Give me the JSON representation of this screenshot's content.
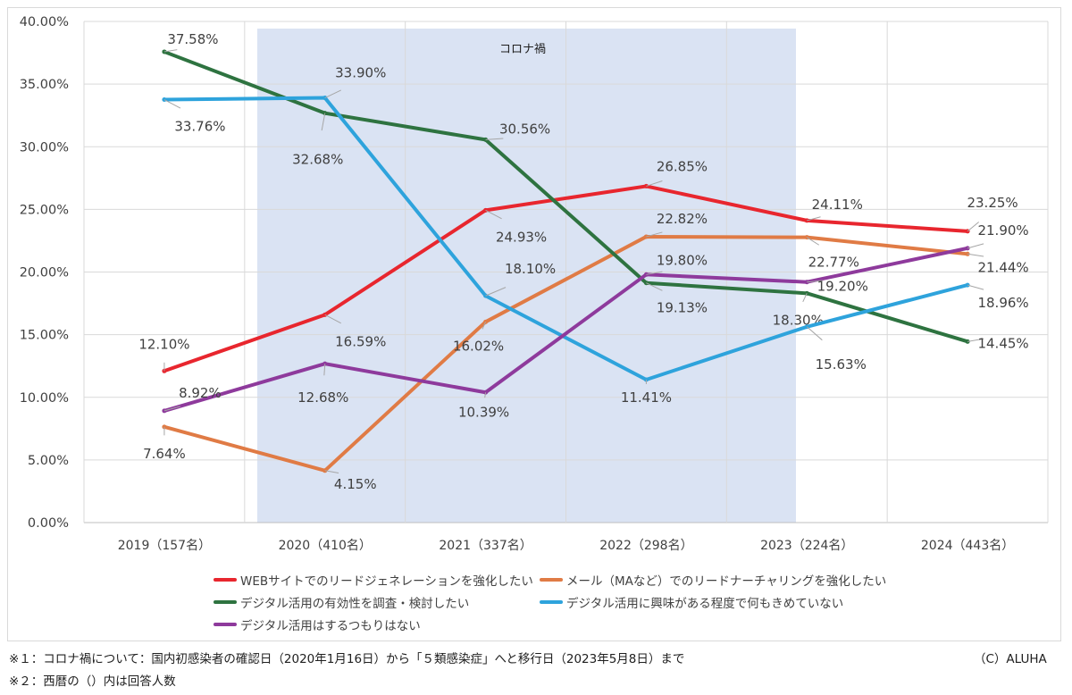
{
  "chart_data": {
    "type": "line",
    "categories": [
      "2019（157名）",
      "2020（410名）",
      "2021（337名）",
      "2022（298名）",
      "2023（224名）",
      "2024（443名）"
    ],
    "ylim": [
      0,
      40
    ],
    "yticks": [
      "0.00%",
      "5.00%",
      "10.00%",
      "15.00%",
      "20.00%",
      "25.00%",
      "30.00%",
      "35.00%",
      "40.00%"
    ],
    "grid": true,
    "legend_position": "bottom",
    "shaded_region": {
      "label": "コロナ禍",
      "color": "#dae3f3"
    },
    "series": [
      {
        "name": "WEBサイトでのリードジェネレーションを強化したい",
        "color": "#e8262e",
        "values": [
          12.1,
          16.59,
          24.93,
          26.85,
          24.11,
          23.25
        ],
        "labels": [
          "12.10%",
          "16.59%",
          "24.93%",
          "26.85%",
          "24.11%",
          "23.25%"
        ]
      },
      {
        "name": "メール（MAなど）でのリードナーチャリングを強化したい",
        "color": "#e07b45",
        "values": [
          7.64,
          4.15,
          16.02,
          22.82,
          22.77,
          21.44
        ],
        "labels": [
          "7.64%",
          "4.15%",
          "16.02%",
          "22.82%",
          "22.77%",
          "21.44%"
        ]
      },
      {
        "name": "デジタル活用の有効性を調査・検討したい",
        "color": "#2e7340",
        "values": [
          37.58,
          32.68,
          30.56,
          19.13,
          18.3,
          14.45
        ],
        "labels": [
          "37.58%",
          "32.68%",
          "30.56%",
          "19.13%",
          "18.30%",
          "14.45%"
        ]
      },
      {
        "name": "デジタル活用に興味がある程度で何もきめていない",
        "color": "#2ea3dc",
        "values": [
          33.76,
          33.9,
          18.1,
          11.41,
          15.63,
          18.96
        ],
        "labels": [
          "33.76%",
          "33.90%",
          "18.10%",
          "11.41%",
          "15.63%",
          "18.96%"
        ]
      },
      {
        "name": "デジタル活用はするつもりはない",
        "color": "#8e3a9c",
        "values": [
          8.92,
          12.68,
          10.39,
          19.8,
          19.2,
          21.9
        ],
        "labels": [
          "8.92%",
          "12.68%",
          "10.39%",
          "19.80%",
          "19.20%",
          "21.90%"
        ]
      }
    ]
  },
  "footnotes": {
    "note1": "※１：コロナ禍について：国内初感染者の確認日（2020年1月16日）から「５類感染症」へと移行日（2023年5月8日）まで",
    "note2": "※２：西暦の（）内は回答人数",
    "copyright": "（C）ALUHA"
  }
}
